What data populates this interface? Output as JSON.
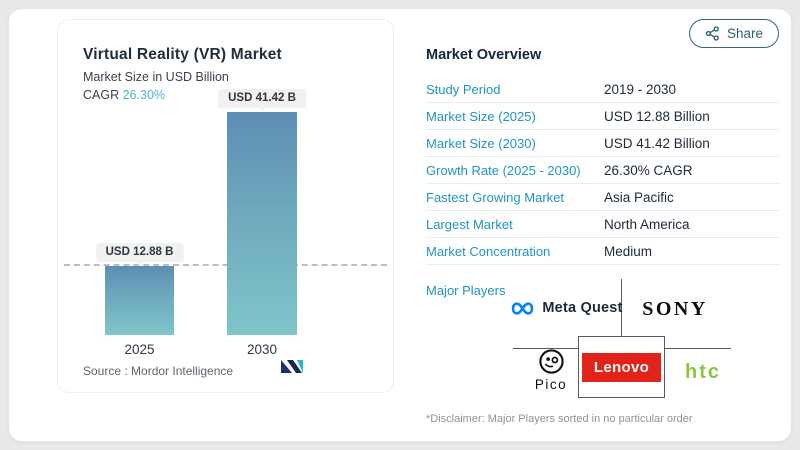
{
  "share": {
    "label": "Share"
  },
  "chart_panel": {
    "title": "Virtual Reality (VR) Market",
    "subtitle": "Market Size in USD Billion",
    "cagr_label": "CAGR",
    "cagr_value": "26.30%",
    "source": "Source :  Mordor Intelligence"
  },
  "chart_data": {
    "type": "bar",
    "title": "Virtual Reality (VR) Market",
    "subtitle": "Market Size in USD Billion",
    "ylabel": "USD Billion",
    "categories": [
      "2025",
      "2030"
    ],
    "values": [
      12.88,
      41.42
    ],
    "annotations": [
      "USD 12.88 B",
      "USD 41.42 B"
    ],
    "cagr_percent": 26.3,
    "reference_line": 12.88,
    "ylim": [
      0,
      45
    ],
    "grid": false,
    "legend": false,
    "bar_gradient": [
      "#5d8db3",
      "#7fc5ca"
    ]
  },
  "overview": {
    "title": "Market Overview",
    "rows": [
      {
        "label": "Study Period",
        "value": "2019 - 2030"
      },
      {
        "label": "Market Size (2025)",
        "value": "USD 12.88 Billion"
      },
      {
        "label": "Market Size (2030)",
        "value": "USD 41.42 Billion"
      },
      {
        "label": "Growth Rate (2025 - 2030)",
        "value": "26.30% CAGR"
      },
      {
        "label": "Fastest Growing Market",
        "value": "Asia Pacific"
      },
      {
        "label": "Largest Market",
        "value": "North America"
      },
      {
        "label": "Market Concentration",
        "value": "Medium"
      }
    ],
    "major_players_label": "Major Players",
    "players": {
      "meta_quest": "Meta Quest",
      "sony": "SONY",
      "pico": "Pico",
      "lenovo": "Lenovo",
      "htc": "htc"
    },
    "disclaimer": "*Disclaimer: Major Players sorted in no particular order"
  },
  "colors": {
    "label_blue": "#1f93c5",
    "value_navy": "#1d2a3a",
    "cagr_teal": "#55b0d4",
    "lenovo_red": "#e2231a",
    "htc_green": "#8dc63f",
    "meta_blue": "#0082fb",
    "bar_top": "#5d8db3",
    "bar_bottom": "#7fc5ca"
  }
}
